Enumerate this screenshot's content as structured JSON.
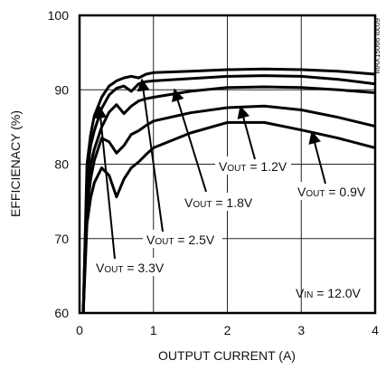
{
  "chart_data": {
    "type": "line",
    "xlabel": "OUTPUT CURRENT (A)",
    "ylabel": "EFFICIENACY (%)",
    "watermark": "MAX15066 toc09",
    "annotation": [
      "V",
      "IN",
      " = 12.0V"
    ],
    "xlim": [
      0,
      4
    ],
    "ylim": [
      60,
      100
    ],
    "xticks": [
      0,
      1,
      2,
      3,
      4
    ],
    "yticks": [
      60,
      70,
      80,
      90,
      100
    ],
    "grid": true,
    "x": [
      0.05,
      0.1,
      0.15,
      0.2,
      0.3,
      0.4,
      0.5,
      0.6,
      0.7,
      0.8,
      0.9,
      1.0,
      1.5,
      2.0,
      2.5,
      3.0,
      3.5,
      4.0
    ],
    "series": [
      {
        "name": [
          "V",
          "OUT",
          " = 3.3V"
        ],
        "color": "#000000",
        "values": [
          60,
          80,
          84,
          86.5,
          89,
          90.5,
          91.2,
          91.6,
          91.8,
          91.6,
          92.1,
          92.3,
          92.5,
          92.7,
          92.8,
          92.7,
          92.5,
          92.1
        ]
      },
      {
        "name": [
          "V",
          "OUT",
          " = 2.5V"
        ],
        "color": "#000000",
        "values": [
          60,
          78.5,
          82.5,
          84.5,
          87.5,
          89.3,
          90.2,
          90.5,
          89.8,
          90.8,
          91.1,
          91.2,
          91.5,
          91.8,
          91.9,
          91.8,
          91.4,
          90.8
        ]
      },
      {
        "name": [
          "V",
          "OUT",
          " = 1.8V"
        ],
        "color": "#000000",
        "values": [
          60,
          76,
          80,
          82,
          85,
          87,
          88,
          86.8,
          87.8,
          88.5,
          88.8,
          89,
          89.8,
          90.3,
          90.4,
          90.3,
          90,
          89.6
        ]
      },
      {
        "name": [
          "V",
          "OUT",
          " = 1.2V"
        ],
        "color": "#000000",
        "values": [
          60,
          74,
          78,
          80.5,
          83.5,
          83,
          81.5,
          82.5,
          84,
          84.5,
          85.2,
          85.8,
          86.9,
          87.6,
          87.8,
          87.3,
          86.3,
          85.1
        ]
      },
      {
        "name": [
          "V",
          "OUT",
          " = 0.9V"
        ],
        "color": "#000000",
        "values": [
          60,
          72,
          75.5,
          77.5,
          79.5,
          78.5,
          75.6,
          78,
          79.5,
          80.3,
          81.3,
          82.2,
          84.2,
          85.6,
          85.6,
          84.6,
          83.5,
          82.2
        ]
      }
    ]
  }
}
